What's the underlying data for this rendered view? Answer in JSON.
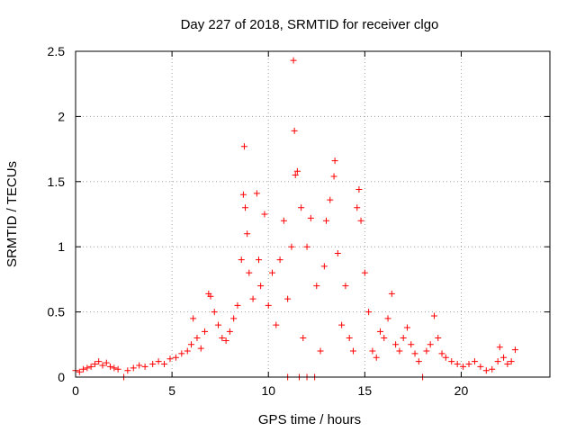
{
  "chart_data": {
    "type": "scatter",
    "title": "Day 227 of 2018, SRMTID for receiver clgo",
    "xlabel": "GPS time / hours",
    "ylabel": "SRMTID / TECUs",
    "xlim": [
      0,
      24.6
    ],
    "ylim": [
      0,
      2.5
    ],
    "x_ticks": [
      0,
      5,
      10,
      15,
      20
    ],
    "x_tick_labels": [
      "0",
      "5",
      "10",
      "15",
      "20"
    ],
    "y_ticks": [
      0,
      0.5,
      1,
      1.5,
      2,
      2.5
    ],
    "y_tick_labels": [
      "0",
      "0.5",
      "1",
      "1.5",
      "2",
      "2.5"
    ],
    "grid": true,
    "marker": "plus",
    "color": "#ff0000",
    "series": [
      {
        "name": "SRMTID",
        "points": [
          [
            0.0,
            0.05
          ],
          [
            0.2,
            0.04
          ],
          [
            0.4,
            0.06
          ],
          [
            0.6,
            0.07
          ],
          [
            0.8,
            0.08
          ],
          [
            1.0,
            0.1
          ],
          [
            1.2,
            0.12
          ],
          [
            1.4,
            0.09
          ],
          [
            1.6,
            0.11
          ],
          [
            1.8,
            0.08
          ],
          [
            2.0,
            0.07
          ],
          [
            2.2,
            0.06
          ],
          [
            2.5,
            0.0
          ],
          [
            2.7,
            0.05
          ],
          [
            3.0,
            0.07
          ],
          [
            3.3,
            0.09
          ],
          [
            3.6,
            0.08
          ],
          [
            4.0,
            0.1
          ],
          [
            4.3,
            0.12
          ],
          [
            4.6,
            0.1
          ],
          [
            4.9,
            0.14
          ],
          [
            5.2,
            0.15
          ],
          [
            5.5,
            0.18
          ],
          [
            5.8,
            0.2
          ],
          [
            6.0,
            0.25
          ],
          [
            6.1,
            0.45
          ],
          [
            6.3,
            0.3
          ],
          [
            6.5,
            0.22
          ],
          [
            6.7,
            0.35
          ],
          [
            6.9,
            0.64
          ],
          [
            7.0,
            0.62
          ],
          [
            7.2,
            0.5
          ],
          [
            7.4,
            0.4
          ],
          [
            7.6,
            0.3
          ],
          [
            7.8,
            0.28
          ],
          [
            8.0,
            0.35
          ],
          [
            8.2,
            0.45
          ],
          [
            8.4,
            0.55
          ],
          [
            8.6,
            0.9
          ],
          [
            8.7,
            1.4
          ],
          [
            8.75,
            1.77
          ],
          [
            8.8,
            1.3
          ],
          [
            8.9,
            1.1
          ],
          [
            9.0,
            0.8
          ],
          [
            9.2,
            0.6
          ],
          [
            9.4,
            1.41
          ],
          [
            9.5,
            0.9
          ],
          [
            9.6,
            0.7
          ],
          [
            9.8,
            1.25
          ],
          [
            10.0,
            0.55
          ],
          [
            10.2,
            0.8
          ],
          [
            10.4,
            0.4
          ],
          [
            10.6,
            0.9
          ],
          [
            10.8,
            1.2
          ],
          [
            11.0,
            0.0
          ],
          [
            11.0,
            0.6
          ],
          [
            11.2,
            1.0
          ],
          [
            11.3,
            2.43
          ],
          [
            11.35,
            1.89
          ],
          [
            11.4,
            1.55
          ],
          [
            11.5,
            1.58
          ],
          [
            11.6,
            0.0
          ],
          [
            11.7,
            1.3
          ],
          [
            11.8,
            0.3
          ],
          [
            12.0,
            0.0
          ],
          [
            12.0,
            1.0
          ],
          [
            12.2,
            1.22
          ],
          [
            12.4,
            0.0
          ],
          [
            12.5,
            0.7
          ],
          [
            12.7,
            0.2
          ],
          [
            12.9,
            0.85
          ],
          [
            13.0,
            1.2
          ],
          [
            13.2,
            1.36
          ],
          [
            13.4,
            1.54
          ],
          [
            13.45,
            1.66
          ],
          [
            13.6,
            0.95
          ],
          [
            13.8,
            0.4
          ],
          [
            14.0,
            0.7
          ],
          [
            14.2,
            0.3
          ],
          [
            14.4,
            0.2
          ],
          [
            14.6,
            1.3
          ],
          [
            14.7,
            1.44
          ],
          [
            14.8,
            1.2
          ],
          [
            15.0,
            0.8
          ],
          [
            15.2,
            0.5
          ],
          [
            15.4,
            0.2
          ],
          [
            15.6,
            0.15
          ],
          [
            15.8,
            0.35
          ],
          [
            16.0,
            0.3
          ],
          [
            16.2,
            0.45
          ],
          [
            16.4,
            0.64
          ],
          [
            16.6,
            0.25
          ],
          [
            16.8,
            0.2
          ],
          [
            17.0,
            0.3
          ],
          [
            17.2,
            0.38
          ],
          [
            17.4,
            0.25
          ],
          [
            17.6,
            0.18
          ],
          [
            17.8,
            0.12
          ],
          [
            18.0,
            0.0
          ],
          [
            18.2,
            0.2
          ],
          [
            18.4,
            0.25
          ],
          [
            18.6,
            0.47
          ],
          [
            18.8,
            0.3
          ],
          [
            19.0,
            0.18
          ],
          [
            19.2,
            0.15
          ],
          [
            19.5,
            0.12
          ],
          [
            19.8,
            0.1
          ],
          [
            20.1,
            0.08
          ],
          [
            20.4,
            0.1
          ],
          [
            20.7,
            0.12
          ],
          [
            21.0,
            0.08
          ],
          [
            21.3,
            0.05
          ],
          [
            21.6,
            0.06
          ],
          [
            21.9,
            0.12
          ],
          [
            22.0,
            0.23
          ],
          [
            22.2,
            0.15
          ],
          [
            22.4,
            0.1
          ],
          [
            22.6,
            0.12
          ],
          [
            22.8,
            0.21
          ]
        ]
      }
    ]
  }
}
